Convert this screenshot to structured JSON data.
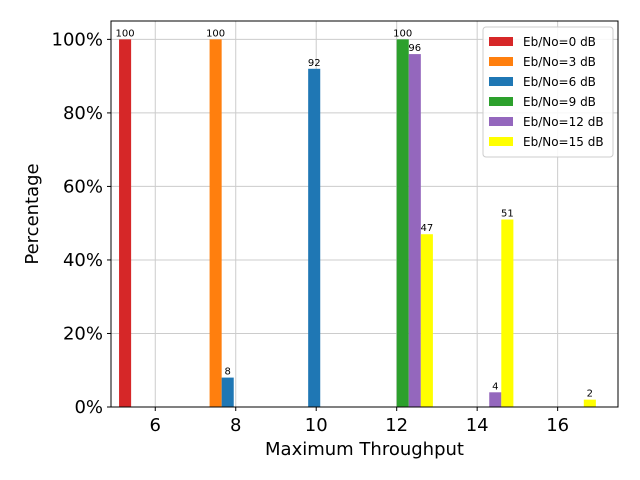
{
  "chart_data": {
    "type": "bar",
    "xlabel": "Maximum Throughput",
    "ylabel": "Percentage",
    "xlim": [
      4.9,
      17.5
    ],
    "ylim": [
      0,
      105
    ],
    "x_ticks": [
      6,
      8,
      10,
      12,
      14,
      16
    ],
    "y_ticks": [
      0,
      20,
      40,
      60,
      80,
      100
    ],
    "y_tick_format": "percent",
    "grid": true,
    "legend_position": "top-right",
    "series": [
      {
        "name": "Eb/No=0 dB",
        "color": "#d62728",
        "points": [
          {
            "x": 5.25,
            "y": 100
          }
        ]
      },
      {
        "name": "Eb/No=3 dB",
        "color": "#ff7f0e",
        "points": [
          {
            "x": 7.5,
            "y": 100
          }
        ]
      },
      {
        "name": "Eb/No=6 dB",
        "color": "#1f77b4",
        "points": [
          {
            "x": 7.8,
            "y": 8
          },
          {
            "x": 9.95,
            "y": 92
          }
        ]
      },
      {
        "name": "Eb/No=9 dB",
        "color": "#2ca02c",
        "points": [
          {
            "x": 12.15,
            "y": 100
          }
        ]
      },
      {
        "name": "Eb/No=12 dB",
        "color": "#9467bd",
        "points": [
          {
            "x": 12.45,
            "y": 96
          },
          {
            "x": 14.45,
            "y": 4
          }
        ]
      },
      {
        "name": "Eb/No=15 dB",
        "color": "#ffff00",
        "points": [
          {
            "x": 12.75,
            "y": 47
          },
          {
            "x": 14.75,
            "y": 51
          },
          {
            "x": 16.8,
            "y": 2
          }
        ]
      }
    ]
  }
}
